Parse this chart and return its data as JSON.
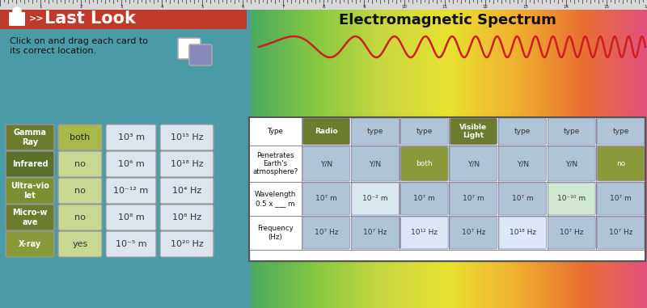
{
  "title_left": "Last Look",
  "title_right": "Electromagnetic Spectrum",
  "subtitle_line1": "Click on and drag each card to",
  "subtitle_line2": "its correct location.",
  "left_type_cards": [
    {
      "label": "Gamma\nRay",
      "color": "#6b7c2e"
    },
    {
      "label": "Infrared",
      "color": "#5a7028"
    },
    {
      "label": "Ultra-vio\nlet",
      "color": "#7a9030"
    },
    {
      "label": "Micro-w\nave",
      "color": "#6b7c2e"
    },
    {
      "label": "X-ray",
      "color": "#8a9a3a"
    }
  ],
  "col2_cards": [
    {
      "label": "both",
      "color": "#a8b84a",
      "textcolor": "#222222"
    },
    {
      "label": "no",
      "color": "#c8d890",
      "textcolor": "#333333"
    },
    {
      "label": "no",
      "color": "#c8d890",
      "textcolor": "#333333"
    },
    {
      "label": "no",
      "color": "#c8d890",
      "textcolor": "#333333"
    },
    {
      "label": "yes",
      "color": "#c8d890",
      "textcolor": "#333333"
    }
  ],
  "col3_cards": [
    {
      "label": "10³ m"
    },
    {
      "label": "10⁶ m"
    },
    {
      "label": "10⁻¹² m"
    },
    {
      "label": "10⁸ m"
    },
    {
      "label": "10⁻⁵ m"
    }
  ],
  "col4_cards": [
    {
      "label": "10¹⁵ Hz"
    },
    {
      "label": "10¹⁸ Hz"
    },
    {
      "label": "10⁴ Hz"
    },
    {
      "label": "10⁸ Hz"
    },
    {
      "label": "10²⁰ Hz"
    }
  ],
  "table_row_labels": [
    "Type",
    "Penetrates\nEarth's\natmosphere?",
    "Wavelength\n0.5 x ___ m",
    "Frequency\n(Hz)"
  ],
  "table_data": [
    [
      {
        "text": "Radio",
        "fc": "#6b7c2e",
        "tc": "white",
        "bold": true
      },
      {
        "text": "type",
        "fc": "#b0c4d8",
        "tc": "#333333",
        "bold": false
      },
      {
        "text": "type",
        "fc": "#b0c4d8",
        "tc": "#333333",
        "bold": false
      },
      {
        "text": "Visible\nLight",
        "fc": "#6b7c2e",
        "tc": "white",
        "bold": true
      },
      {
        "text": "type",
        "fc": "#b0c4d8",
        "tc": "#333333",
        "bold": false
      },
      {
        "text": "type",
        "fc": "#b0c4d8",
        "tc": "#333333",
        "bold": false
      },
      {
        "text": "type",
        "fc": "#b0c4d8",
        "tc": "#333333",
        "bold": false
      }
    ],
    [
      {
        "text": "Y/N",
        "fc": "#b0c4d8",
        "tc": "#333333",
        "bold": false
      },
      {
        "text": "Y/N",
        "fc": "#b0c4d8",
        "tc": "#333333",
        "bold": false
      },
      {
        "text": "both",
        "fc": "#8a9a3a",
        "tc": "white",
        "bold": false
      },
      {
        "text": "Y/N",
        "fc": "#b0c4d8",
        "tc": "#333333",
        "bold": false
      },
      {
        "text": "Y/N",
        "fc": "#b0c4d8",
        "tc": "#333333",
        "bold": false
      },
      {
        "text": "Y/N",
        "fc": "#b0c4d8",
        "tc": "#333333",
        "bold": false
      },
      {
        "text": "no",
        "fc": "#8a9a3a",
        "tc": "white",
        "bold": false
      }
    ],
    [
      {
        "text": "10⁷ m",
        "fc": "#b0c4d8",
        "tc": "#333333",
        "bold": false
      },
      {
        "text": "10⁻² m",
        "fc": "#dce8f0",
        "tc": "#333333",
        "bold": false
      },
      {
        "text": "10⁷ m",
        "fc": "#b0c4d8",
        "tc": "#333333",
        "bold": false
      },
      {
        "text": "10⁷ m",
        "fc": "#b0c4d8",
        "tc": "#333333",
        "bold": false
      },
      {
        "text": "10⁷ m",
        "fc": "#b0c4d8",
        "tc": "#333333",
        "bold": false
      },
      {
        "text": "10⁻¹⁰ m",
        "fc": "#d0e8d0",
        "tc": "#333333",
        "bold": false
      },
      {
        "text": "10⁷ m",
        "fc": "#b0c4d8",
        "tc": "#333333",
        "bold": false
      }
    ],
    [
      {
        "text": "10⁷ Hz",
        "fc": "#b0c4d8",
        "tc": "#333333",
        "bold": false
      },
      {
        "text": "10⁷ Hz",
        "fc": "#b0c4d8",
        "tc": "#333333",
        "bold": false
      },
      {
        "text": "10¹² Hz",
        "fc": "#dce8f8",
        "tc": "#333333",
        "bold": false
      },
      {
        "text": "10⁷ Hz",
        "fc": "#b0c4d8",
        "tc": "#333333",
        "bold": false
      },
      {
        "text": "10¹⁸ Hz",
        "fc": "#dce8f8",
        "tc": "#333333",
        "bold": false
      },
      {
        "text": "10⁷ Hz",
        "fc": "#b0c4d8",
        "tc": "#333333",
        "bold": false
      },
      {
        "text": "10⁷ Hz",
        "fc": "#b0c4d8",
        "tc": "#333333",
        "bold": false
      }
    ]
  ],
  "header_color": "#c0392b",
  "left_bg_color": "#4a9aa8",
  "right_gradient": [
    "#4aaa60",
    "#88c840",
    "#c8d840",
    "#e8e030",
    "#f0b030",
    "#e87030",
    "#e05080"
  ],
  "ruler_bg": "#d8d8d8",
  "card_neutral_fc": "#dce4ee",
  "card_neutral_tc": "#333333"
}
